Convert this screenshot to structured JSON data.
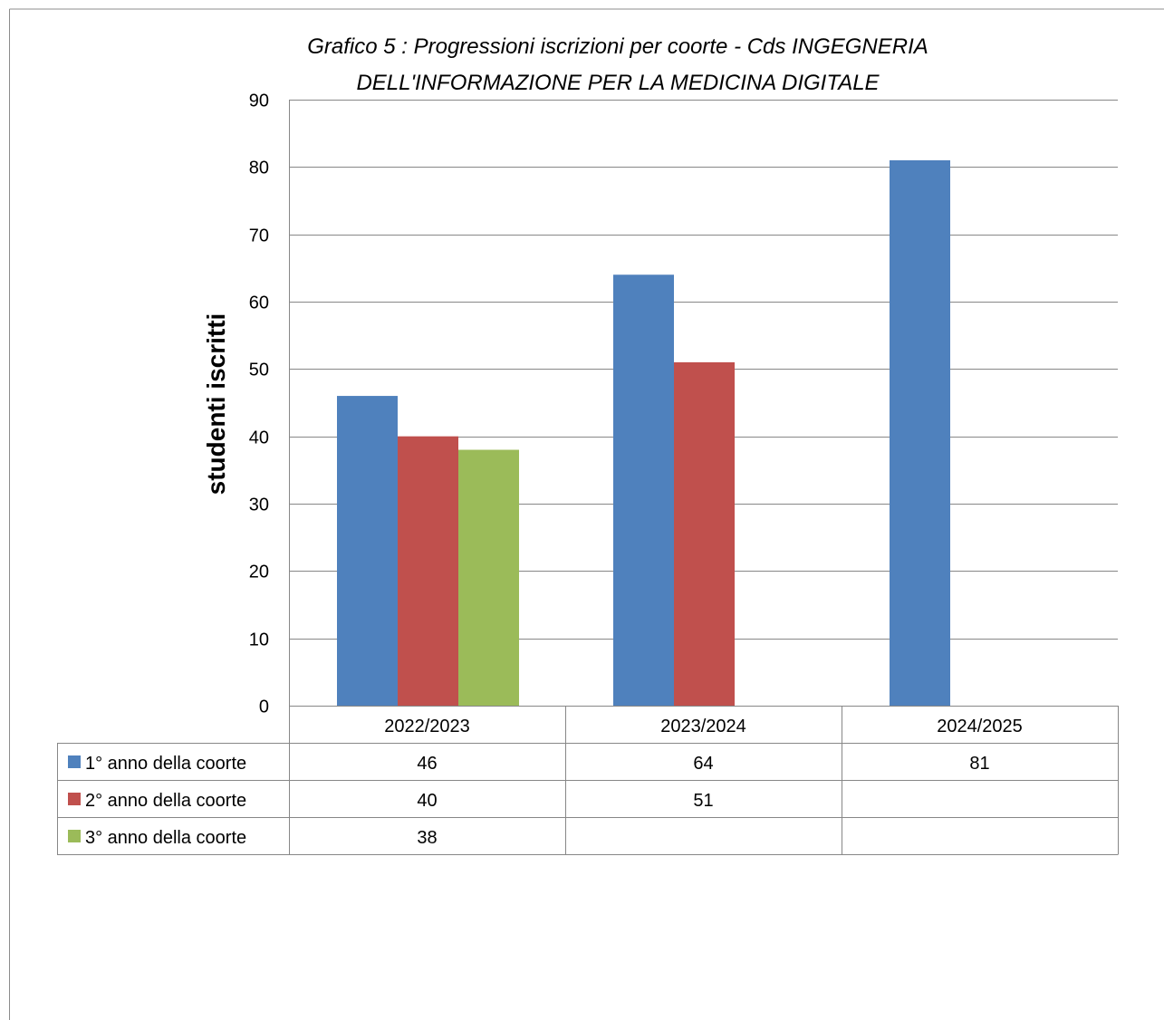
{
  "chart_data": {
    "type": "bar",
    "title_lines": [
      "Grafico 5 : Progressioni iscrizioni per coorte - Cds INGEGNERIA",
      "DELL'INFORMAZIONE PER LA MEDICINA DIGITALE"
    ],
    "ylabel": "studenti  iscritti",
    "xlabel": "",
    "ylim": [
      0,
      90
    ],
    "yticks": [
      "0",
      "10",
      "20",
      "30",
      "40",
      "50",
      "60",
      "70",
      "80",
      "90"
    ],
    "grid": true,
    "legend": "data-table",
    "categories": [
      "2022/2023",
      "2023/2024",
      "2024/2025"
    ],
    "series": [
      {
        "name": "1° anno della coorte",
        "color": "#4f81bd",
        "values": [
          46,
          64,
          81
        ]
      },
      {
        "name": "2° anno della coorte",
        "color": "#c0504d",
        "values": [
          40,
          51,
          null
        ]
      },
      {
        "name": "3° anno della coorte",
        "color": "#9bbb59",
        "values": [
          38,
          null,
          null
        ]
      }
    ]
  }
}
